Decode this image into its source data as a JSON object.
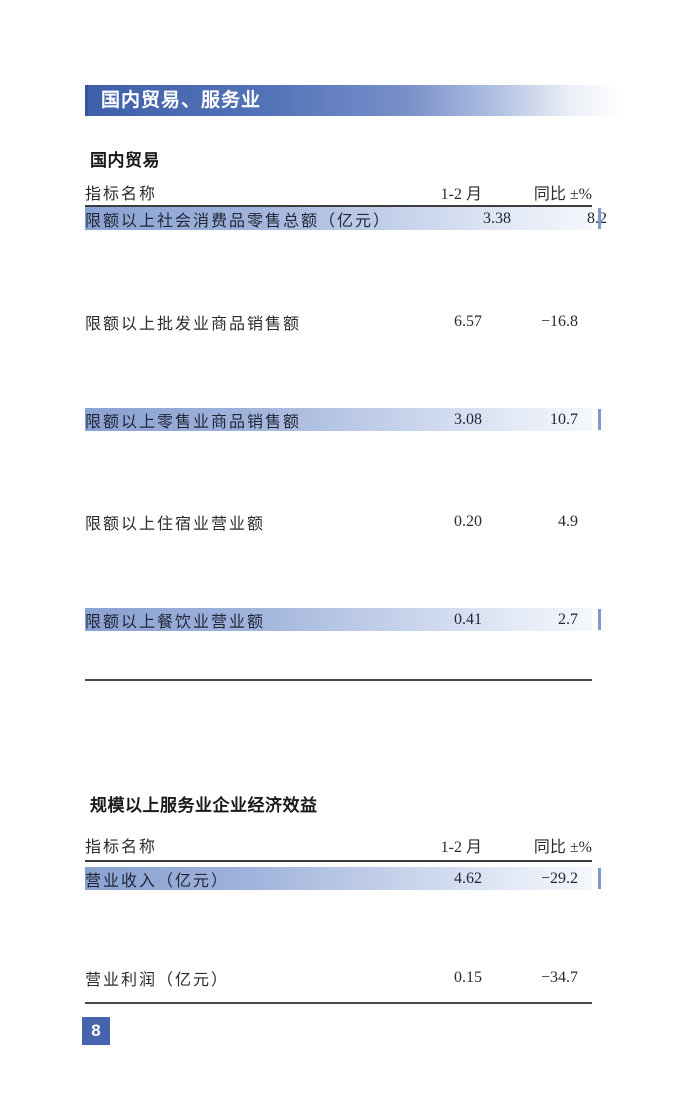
{
  "banner": {
    "title": "国内贸易、服务业"
  },
  "colors": {
    "banner_blue": "#4a6ab2",
    "highlight_blue": "#8aa2d3",
    "page_box_blue": "#4564ad"
  },
  "tables": [
    {
      "title": "国内贸易",
      "columns": {
        "name": "指标名称",
        "period": "1-2 月",
        "yoy": "同比 ±%"
      },
      "rows": [
        {
          "name": "限额以上社会消费品零售总额（亿元）",
          "value": "3.38",
          "yoy": "8.2"
        },
        {
          "name": "限额以上批发业商品销售额",
          "value": "6.57",
          "yoy": "−16.8"
        },
        {
          "name": "限额以上零售业商品销售额",
          "value": "3.08",
          "yoy": "10.7"
        },
        {
          "name": "限额以上住宿业营业额",
          "value": "0.20",
          "yoy": "4.9"
        },
        {
          "name": "限额以上餐饮业营业额",
          "value": "0.41",
          "yoy": "2.7"
        }
      ]
    },
    {
      "title": "规模以上服务业企业经济效益",
      "columns": {
        "name": "指标名称",
        "period": "1-2 月",
        "yoy": "同比 ±%"
      },
      "rows": [
        {
          "name": "营业收入（亿元）",
          "value": "4.62",
          "yoy": "−29.2"
        },
        {
          "name": "营业利润（亿元）",
          "value": "0.15",
          "yoy": "−34.7"
        }
      ]
    }
  ],
  "footer": {
    "page_number": "8"
  }
}
